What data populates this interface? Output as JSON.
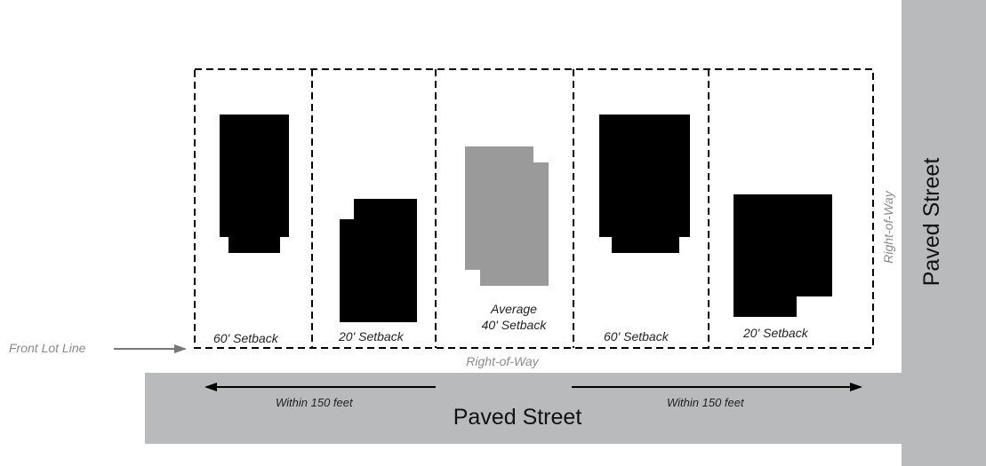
{
  "colors": {
    "street": "#b9babc",
    "building_existing": "#000000",
    "building_proposed": "#9a9a9a",
    "lot_border": "#000000",
    "arrow_gray": "#777777"
  },
  "front_lot_line_label": "Front Lot Line",
  "row_right_of_way_label": "Right-of-Way",
  "side_right_of_way_label": "Right-of-Way",
  "horizontal_street_label": "Paved Street",
  "vertical_street_label": "Paved Street",
  "distance_left_label": "Within 150 feet",
  "distance_right_label": "Within 150 feet",
  "lots": [
    {
      "id": "lot-1",
      "setback_label": "60' Setback",
      "building": "existing"
    },
    {
      "id": "lot-2",
      "setback_label": "20' Setback",
      "building": "existing"
    },
    {
      "id": "lot-3",
      "setback_label_line1": "Average",
      "setback_label_line2": "40' Setback",
      "building": "proposed"
    },
    {
      "id": "lot-4",
      "setback_label": "60' Setback",
      "building": "existing"
    },
    {
      "id": "lot-5",
      "setback_label": "20' Setback",
      "building": "existing"
    }
  ]
}
